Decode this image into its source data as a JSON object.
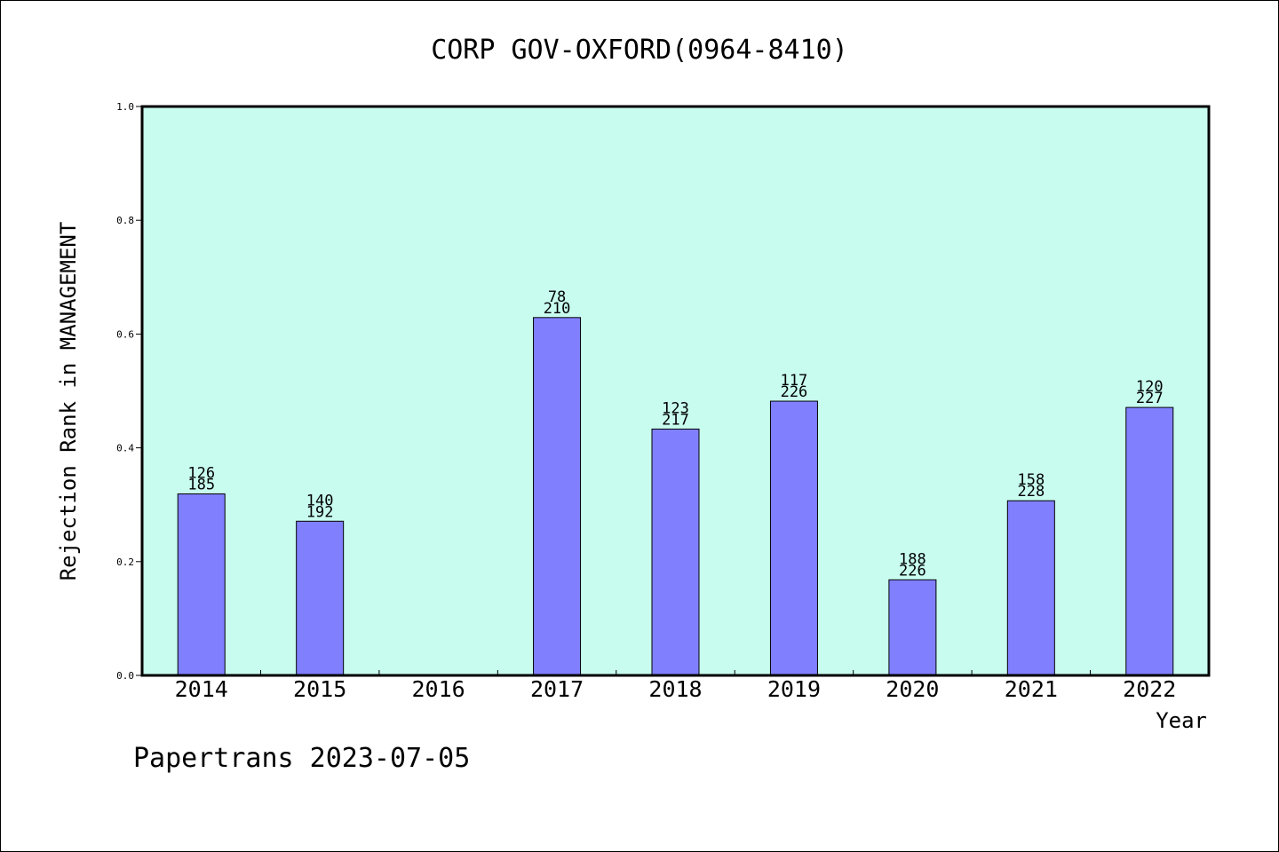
{
  "chart_data": {
    "type": "bar",
    "title": "CORP GOV-OXFORD(0964-8410)",
    "xlabel": "Year",
    "ylabel": "Rejection Rank in MANAGEMENT",
    "ylim": [
      0,
      1
    ],
    "yticks": [
      "0.0",
      "0.2",
      "0.4",
      "0.6",
      "0.8",
      "1.0"
    ],
    "ytick_values": [
      0,
      0.2,
      0.4,
      0.6,
      0.8,
      1.0
    ],
    "categories": [
      "2014",
      "2015",
      "2016",
      "2017",
      "2018",
      "2019",
      "2020",
      "2021",
      "2022"
    ],
    "values": [
      0.319,
      0.271,
      null,
      0.629,
      0.433,
      0.482,
      0.168,
      0.307,
      0.471
    ],
    "labels_top": [
      "126",
      "140",
      "",
      "78",
      "123",
      "117",
      "188",
      "158",
      "120"
    ],
    "labels_bottom": [
      "185",
      "192",
      "",
      "210",
      "217",
      "226",
      "226",
      "228",
      "227"
    ],
    "grid": false,
    "colors": {
      "bar": "#8080ff",
      "plot_bg": "#c8fcef",
      "bar_stroke": "#000000"
    }
  },
  "footer": {
    "text": "Papertrans 2023-07-05"
  }
}
